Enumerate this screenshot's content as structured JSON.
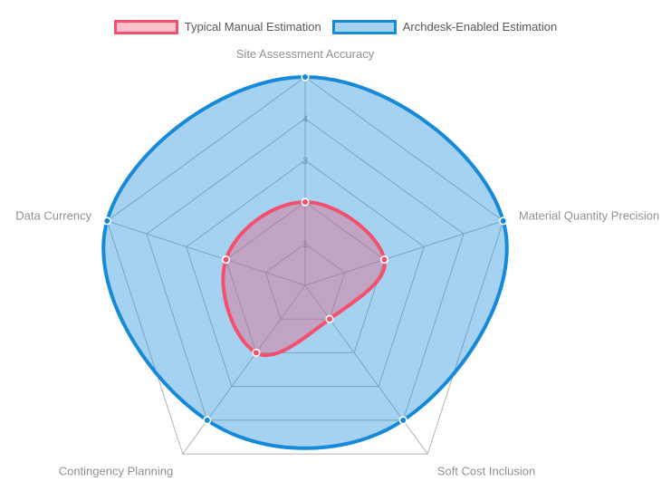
{
  "theme": {
    "background": "#ffffff",
    "legend_text_color": "#55575a",
    "axis_label_color": "#8f9193",
    "tick_label_color": "#999999",
    "grid_color": "#b5b5b5",
    "point_border_color": "#ffffff"
  },
  "legend": {
    "position": "top",
    "items": [
      {
        "label": "Typical Manual Estimation",
        "border_color": "#f4506e",
        "fill_color": "rgba(244,80,110,0.35)"
      },
      {
        "label": "Archdesk-Enabled Estimation",
        "border_color": "#1689d9",
        "fill_color": "rgba(22,137,217,0.38)"
      }
    ]
  },
  "chart_data": {
    "type": "radar",
    "title": "",
    "categories": [
      "Site Assessment Accuracy",
      "Material Quantity Precision",
      "Soft Cost Inclusion",
      "Contingency Planning",
      "Data Currency"
    ],
    "series": [
      {
        "name": "Typical Manual Estimation",
        "values": [
          2,
          2,
          1,
          2,
          2
        ],
        "border_color": "#f4506e",
        "fill_color": "rgba(244,80,110,0.35)"
      },
      {
        "name": "Archdesk-Enabled Estimation",
        "values": [
          5,
          5,
          4,
          4,
          5
        ],
        "border_color": "#1689d9",
        "fill_color": "rgba(22,137,217,0.38)"
      }
    ],
    "scale": {
      "min": 0,
      "max": 5,
      "step": 1,
      "ticks": [
        1,
        2,
        3,
        4,
        5
      ]
    },
    "grid": {
      "shape": "pentagon",
      "levels": 5,
      "on": true
    },
    "legend_position": "top",
    "line_tension": 0.4
  }
}
